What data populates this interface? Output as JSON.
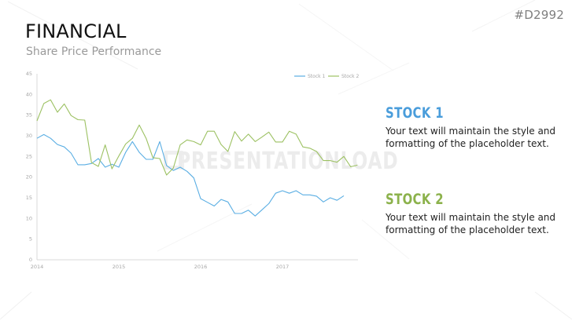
{
  "header": {
    "title": "FINANCIAL",
    "subtitle": "Share Price Performance",
    "slide_code": "#D2992"
  },
  "watermark": "PRESENTATIONLOAD",
  "stocks": [
    {
      "title": "STOCK 1",
      "text": "Your text will maintain the style and formatting of the placeholder text.",
      "color": "#4a9ddb"
    },
    {
      "title": "STOCK 2",
      "text": "Your text will maintain the style and formatting of the placeholder text.",
      "color": "#8cb24c"
    }
  ],
  "chart_data": {
    "type": "line",
    "title": "",
    "xlabel": "",
    "ylabel": "",
    "ylim": [
      0,
      45
    ],
    "yticks": [
      0,
      5,
      10,
      15,
      20,
      25,
      30,
      35,
      40,
      45
    ],
    "xtick_labels": [
      "2014",
      "2015",
      "2016",
      "2017"
    ],
    "grid": false,
    "legend_position": "top-right",
    "x": [
      "2014-01",
      "2014-02",
      "2014-03",
      "2014-04",
      "2014-05",
      "2014-06",
      "2014-07",
      "2014-08",
      "2014-09",
      "2014-10",
      "2014-11",
      "2014-12",
      "2015-01",
      "2015-02",
      "2015-03",
      "2015-04",
      "2015-05",
      "2015-06",
      "2015-07",
      "2015-08",
      "2015-09",
      "2015-10",
      "2015-11",
      "2015-12",
      "2016-01",
      "2016-02",
      "2016-03",
      "2016-04",
      "2016-05",
      "2016-06",
      "2016-07",
      "2016-08",
      "2016-09",
      "2016-10",
      "2016-11",
      "2016-12",
      "2017-01",
      "2017-02",
      "2017-03",
      "2017-04",
      "2017-05",
      "2017-06",
      "2017-07",
      "2017-08",
      "2017-09",
      "2017-10",
      "2017-11",
      "2017-12"
    ],
    "series": [
      {
        "name": "Stock 1",
        "color": "#5aaee3",
        "values": [
          29.4,
          30.3,
          29.4,
          27.9,
          27.3,
          25.8,
          23.0,
          23.0,
          23.3,
          24.5,
          22.4,
          23.1,
          22.4,
          26.0,
          28.6,
          26.0,
          24.3,
          24.3,
          28.6,
          22.8,
          21.6,
          22.4,
          21.4,
          19.8,
          14.8,
          13.9,
          13.0,
          14.6,
          14.0,
          11.2,
          11.2,
          12.0,
          10.6,
          12.1,
          13.6,
          16.1,
          16.7,
          16.1,
          16.7,
          15.7,
          15.7,
          15.4,
          14.0,
          15.0,
          14.4,
          15.5,
          null,
          null
        ]
      },
      {
        "name": "Stock 2",
        "color": "#9cc162",
        "values": [
          33.6,
          37.8,
          38.7,
          35.7,
          37.7,
          34.9,
          33.9,
          33.8,
          23.5,
          22.6,
          27.8,
          22.0,
          25.1,
          28.0,
          29.4,
          32.6,
          29.4,
          24.7,
          24.5,
          20.5,
          22.2,
          27.8,
          29.0,
          28.6,
          27.8,
          31.1,
          31.1,
          27.9,
          26.2,
          31.0,
          28.7,
          30.4,
          28.6,
          29.7,
          30.9,
          28.5,
          28.5,
          31.1,
          30.4,
          27.3,
          27.0,
          26.2,
          24.0,
          24.0,
          23.6,
          25.0,
          22.5,
          22.9
        ]
      }
    ]
  }
}
